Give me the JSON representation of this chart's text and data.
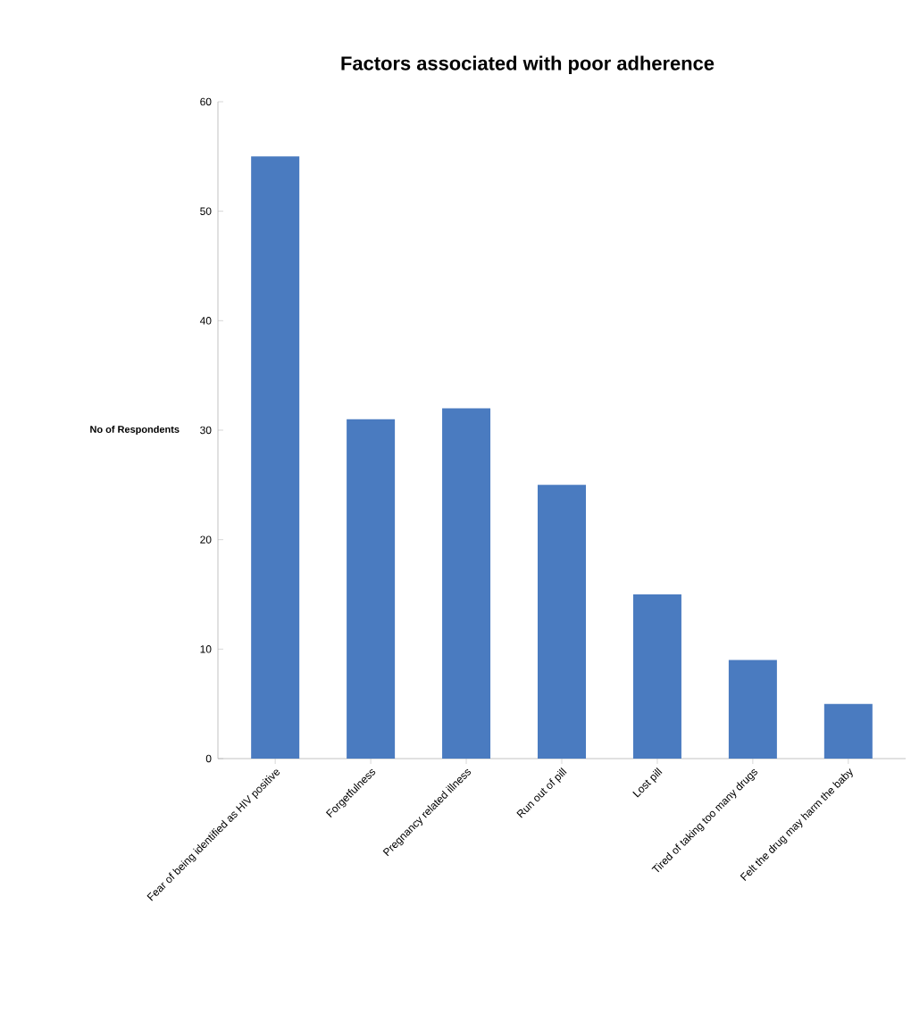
{
  "chart_data": {
    "type": "bar",
    "title": "Factors associated with poor adherence",
    "ylabel": "No of Respondents",
    "categories": [
      "Fear of being identified as HIV positive",
      "Forgetfulness",
      "Pregnancy related illness",
      "Run out of pill",
      "Lost pill",
      "Tired of taking too many drugs",
      "Felt the drug may harm the baby"
    ],
    "values": [
      55,
      31,
      32,
      25,
      15,
      9,
      5
    ],
    "color": "#4a7bc0",
    "ylim": [
      0,
      60
    ],
    "yticks": [
      0,
      10,
      20,
      30,
      40,
      50,
      60
    ],
    "grid": false
  }
}
